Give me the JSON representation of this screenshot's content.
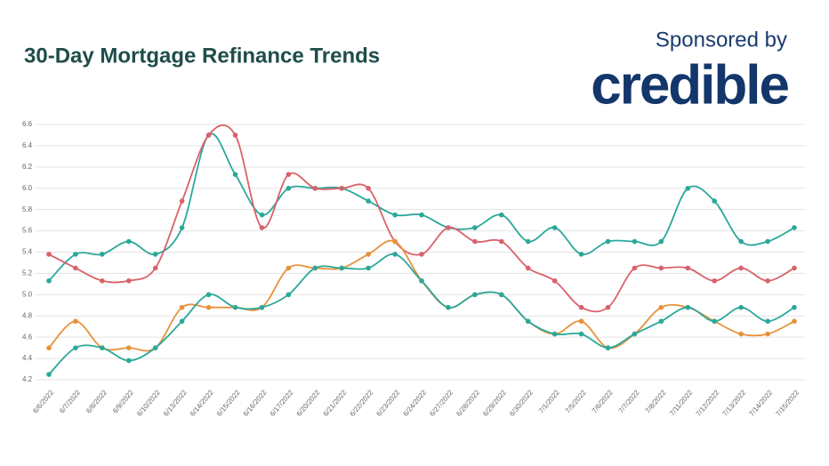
{
  "chart_data": {
    "type": "line",
    "title": "30-Day Mortgage Refinance Trends",
    "categories": [
      "6/6/2022",
      "6/7/2022",
      "6/8/2022",
      "6/9/2022",
      "6/10/2022",
      "6/13/2022",
      "6/14/2022",
      "6/15/2022",
      "6/16/2022",
      "6/17/2022",
      "6/20/2022",
      "6/21/2022",
      "6/22/2022",
      "6/23/2022",
      "6/24/2022",
      "6/27/2022",
      "6/28/2022",
      "6/29/2022",
      "6/30/2022",
      "7/1/2022",
      "7/5/2022",
      "7/6/2022",
      "7/7/2022",
      "7/8/2022",
      "7/11/2022",
      "7/12/2022",
      "7/13/2022",
      "7/14/2022",
      "7/15/2022"
    ],
    "series": [
      {
        "color": "#2aa89a",
        "values": [
          5.13,
          5.38,
          5.38,
          5.5,
          5.38,
          5.63,
          6.5,
          6.13,
          5.75,
          6.0,
          6.0,
          6.0,
          5.88,
          5.75,
          5.75,
          5.63,
          5.63,
          5.75,
          5.5,
          5.63,
          5.38,
          5.5,
          5.5,
          5.5,
          6.0,
          5.88,
          5.5,
          5.5,
          5.63
        ]
      },
      {
        "color": "#d9626a",
        "values": [
          5.38,
          5.25,
          5.13,
          5.13,
          5.25,
          5.88,
          6.5,
          6.5,
          5.63,
          6.13,
          6.0,
          6.0,
          6.0,
          5.5,
          5.38,
          5.63,
          5.5,
          5.5,
          5.25,
          5.13,
          4.88,
          4.88,
          5.25,
          5.25,
          5.25,
          5.13,
          5.25,
          5.13,
          5.25
        ]
      },
      {
        "color": "#e8913a",
        "values": [
          4.5,
          4.75,
          4.5,
          4.5,
          4.5,
          4.88,
          4.88,
          4.88,
          4.88,
          5.25,
          5.25,
          5.25,
          5.38,
          5.5,
          5.13,
          4.88,
          5.0,
          5.0,
          4.75,
          4.63,
          4.75,
          4.5,
          4.63,
          4.88,
          4.88,
          4.75,
          4.63,
          4.63,
          4.75
        ]
      },
      {
        "color": "#2aa89a",
        "values": [
          4.25,
          4.5,
          4.5,
          4.38,
          4.5,
          4.75,
          5.0,
          4.88,
          4.88,
          5.0,
          5.25,
          5.25,
          5.25,
          5.38,
          5.13,
          4.88,
          5.0,
          5.0,
          4.75,
          4.63,
          4.63,
          4.5,
          4.63,
          4.75,
          4.88,
          4.75,
          4.88,
          4.75,
          4.88
        ]
      }
    ],
    "ylim": [
      4.2,
      6.6
    ],
    "yticks": [
      4.2,
      4.4,
      4.6,
      4.8,
      {
        "value": 5,
        "label": "5.0"
      },
      5.2,
      5.4,
      5.6,
      5.8,
      {
        "value": 6,
        "label": "6.0"
      },
      6.2,
      6.4,
      6.6
    ],
    "grid": true
  },
  "sponsor_label": "Sponsored by",
  "sponsor_logo": "credible"
}
